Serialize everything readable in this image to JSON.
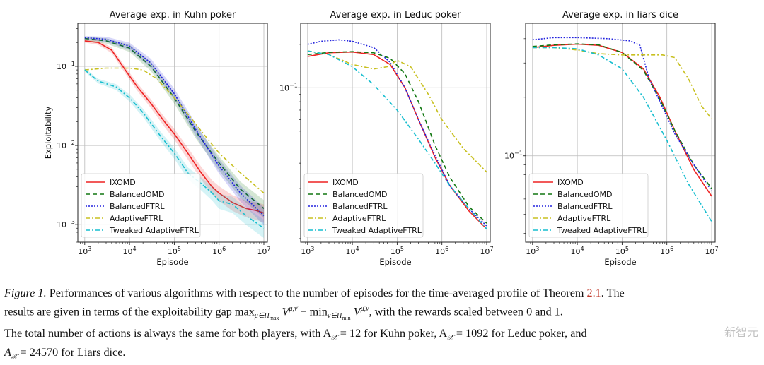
{
  "chart_data": [
    {
      "type": "line",
      "title": "Average exp. in Kuhn poker",
      "xlabel": "Episode",
      "ylabel": "Exploitability",
      "xscale": "log",
      "yscale": "log",
      "xlim": [
        700,
        12000000
      ],
      "ylim": [
        0.0006,
        0.35
      ],
      "xticks": [
        {
          "value": 1000,
          "base": "10",
          "exp": "3"
        },
        {
          "value": 10000,
          "base": "10",
          "exp": "4"
        },
        {
          "value": 100000,
          "base": "10",
          "exp": "5"
        },
        {
          "value": 1000000,
          "base": "10",
          "exp": "6"
        },
        {
          "value": 10000000,
          "base": "10",
          "exp": "7"
        }
      ],
      "yticks": [
        {
          "value": 0.001,
          "base": "10",
          "exp": "−3"
        },
        {
          "value": 0.01,
          "base": "10",
          "exp": "−2"
        },
        {
          "value": 0.1,
          "base": "10",
          "exp": "−1"
        }
      ],
      "grid": true,
      "legend": "lower-left",
      "series": [
        {
          "name": "IXOMD",
          "color": "#ee2222",
          "dash": "solid",
          "band": true,
          "points": [
            [
              1000,
              0.21
            ],
            [
              2000,
              0.2
            ],
            [
              4000,
              0.16
            ],
            [
              8000,
              0.09
            ],
            [
              15000,
              0.055
            ],
            [
              30000,
              0.034
            ],
            [
              60000,
              0.02
            ],
            [
              100000,
              0.014
            ],
            [
              200000,
              0.008
            ],
            [
              400000,
              0.0045
            ],
            [
              700000,
              0.003
            ],
            [
              1000000,
              0.0025
            ],
            [
              2000000,
              0.0019
            ],
            [
              4000000,
              0.0016
            ],
            [
              7000000,
              0.0015
            ],
            [
              10000000,
              0.0014
            ]
          ]
        },
        {
          "name": "BalancedOMD",
          "color": "#117711",
          "dash": "6,4",
          "band": true,
          "points": [
            [
              1000,
              0.225
            ],
            [
              3000,
              0.21
            ],
            [
              10000,
              0.17
            ],
            [
              30000,
              0.1
            ],
            [
              100000,
              0.04
            ],
            [
              300000,
              0.015
            ],
            [
              1000000,
              0.006
            ],
            [
              3000000,
              0.0028
            ],
            [
              10000000,
              0.0016
            ]
          ]
        },
        {
          "name": "BalancedFTRL",
          "color": "#2222dd",
          "dash": "2,2",
          "band": true,
          "points": [
            [
              1000,
              0.23
            ],
            [
              3000,
              0.22
            ],
            [
              10000,
              0.18
            ],
            [
              30000,
              0.11
            ],
            [
              100000,
              0.045
            ],
            [
              300000,
              0.016
            ],
            [
              1000000,
              0.0055
            ],
            [
              3000000,
              0.0025
            ],
            [
              10000000,
              0.0013
            ]
          ]
        },
        {
          "name": "AdaptiveFTRL",
          "color": "#c8c020",
          "dash": "6,3,2,3",
          "band": false,
          "points": [
            [
              1000,
              0.09
            ],
            [
              3000,
              0.095
            ],
            [
              10000,
              0.095
            ],
            [
              20000,
              0.09
            ],
            [
              40000,
              0.07
            ],
            [
              100000,
              0.04
            ],
            [
              200000,
              0.025
            ],
            [
              500000,
              0.013
            ],
            [
              1000000,
              0.008
            ],
            [
              3000000,
              0.0045
            ],
            [
              10000000,
              0.0025
            ]
          ]
        },
        {
          "name": "Tweaked AdaptiveFTRL",
          "color": "#17becf",
          "dash": "6,3,2,3",
          "band": true,
          "points": [
            [
              1000,
              0.09
            ],
            [
              2000,
              0.065
            ],
            [
              5000,
              0.055
            ],
            [
              10000,
              0.04
            ],
            [
              20000,
              0.026
            ],
            [
              50000,
              0.013
            ],
            [
              100000,
              0.008
            ],
            [
              200000,
              0.0045
            ],
            [
              400000,
              0.0033
            ],
            [
              700000,
              0.0025
            ],
            [
              1000000,
              0.002
            ],
            [
              2000000,
              0.0018
            ],
            [
              4000000,
              0.0013
            ],
            [
              10000000,
              0.0009
            ]
          ]
        }
      ]
    },
    {
      "type": "line",
      "title": "Average exp. in Leduc poker",
      "xlabel": "Episode",
      "ylabel": "",
      "xscale": "log",
      "yscale": "log",
      "xlim": [
        700,
        12000000
      ],
      "ylim": [
        0.0085,
        0.28
      ],
      "xticks": [
        {
          "value": 1000,
          "base": "10",
          "exp": "3"
        },
        {
          "value": 10000,
          "base": "10",
          "exp": "4"
        },
        {
          "value": 100000,
          "base": "10",
          "exp": "5"
        },
        {
          "value": 1000000,
          "base": "10",
          "exp": "6"
        },
        {
          "value": 10000000,
          "base": "10",
          "exp": "7"
        }
      ],
      "yticks": [
        {
          "value": 0.1,
          "base": "10",
          "exp": "−1"
        }
      ],
      "grid": true,
      "legend": "lower-left",
      "series": [
        {
          "name": "IXOMD",
          "color": "#ee2222",
          "dash": "solid",
          "band": false,
          "points": [
            [
              1000,
              0.165
            ],
            [
              3000,
              0.175
            ],
            [
              10000,
              0.177
            ],
            [
              30000,
              0.17
            ],
            [
              70000,
              0.145
            ],
            [
              150000,
              0.1
            ],
            [
              300000,
              0.06
            ],
            [
              700000,
              0.033
            ],
            [
              1500000,
              0.021
            ],
            [
              4000000,
              0.014
            ],
            [
              10000000,
              0.0105
            ]
          ]
        },
        {
          "name": "BalancedOMD",
          "color": "#117711",
          "dash": "6,4",
          "band": false,
          "points": [
            [
              1000,
              0.17
            ],
            [
              3000,
              0.176
            ],
            [
              10000,
              0.178
            ],
            [
              30000,
              0.175
            ],
            [
              70000,
              0.16
            ],
            [
              150000,
              0.125
            ],
            [
              300000,
              0.08
            ],
            [
              700000,
              0.04
            ],
            [
              1500000,
              0.024
            ],
            [
              4000000,
              0.015
            ],
            [
              10000000,
              0.0115
            ]
          ]
        },
        {
          "name": "BalancedFTRL",
          "color": "#2222dd",
          "dash": "2,2",
          "band": false,
          "points": [
            [
              1000,
              0.2
            ],
            [
              2000,
              0.21
            ],
            [
              5000,
              0.215
            ],
            [
              10000,
              0.21
            ],
            [
              30000,
              0.19
            ],
            [
              70000,
              0.15
            ],
            [
              150000,
              0.1
            ],
            [
              300000,
              0.06
            ],
            [
              700000,
              0.034
            ],
            [
              1500000,
              0.021
            ],
            [
              4000000,
              0.0145
            ],
            [
              10000000,
              0.011
            ]
          ]
        },
        {
          "name": "AdaptiveFTRL",
          "color": "#c8c020",
          "dash": "6,3,2,3",
          "band": false,
          "points": [
            [
              1000,
              0.18
            ],
            [
              3000,
              0.17
            ],
            [
              10000,
              0.145
            ],
            [
              30000,
              0.135
            ],
            [
              60000,
              0.14
            ],
            [
              100000,
              0.155
            ],
            [
              200000,
              0.14
            ],
            [
              500000,
              0.09
            ],
            [
              1000000,
              0.06
            ],
            [
              3000000,
              0.038
            ],
            [
              10000000,
              0.026
            ]
          ]
        },
        {
          "name": "Tweaked AdaptiveFTRL",
          "color": "#17becf",
          "dash": "6,3,2,3",
          "band": false,
          "points": [
            [
              1000,
              0.18
            ],
            [
              3000,
              0.17
            ],
            [
              10000,
              0.14
            ],
            [
              30000,
              0.105
            ],
            [
              100000,
              0.07
            ],
            [
              300000,
              0.044
            ],
            [
              700000,
              0.03
            ],
            [
              1500000,
              0.021
            ],
            [
              4000000,
              0.0145
            ],
            [
              10000000,
              0.0105
            ]
          ]
        }
      ]
    },
    {
      "type": "line",
      "title": "Average exp. in liars dice",
      "xlabel": "Episode",
      "ylabel": "",
      "xscale": "log",
      "yscale": "log",
      "xlim": [
        700,
        12000000
      ],
      "ylim": [
        0.036,
        0.48
      ],
      "xticks": [
        {
          "value": 1000,
          "base": "10",
          "exp": "3"
        },
        {
          "value": 10000,
          "base": "10",
          "exp": "4"
        },
        {
          "value": 100000,
          "base": "10",
          "exp": "5"
        },
        {
          "value": 1000000,
          "base": "10",
          "exp": "6"
        },
        {
          "value": 10000000,
          "base": "10",
          "exp": "7"
        }
      ],
      "yticks": [
        {
          "value": 0.1,
          "base": "10",
          "exp": "−1"
        }
      ],
      "grid": true,
      "legend": "lower-left",
      "series": [
        {
          "name": "IXOMD",
          "color": "#ee2222",
          "dash": "solid",
          "band": false,
          "points": [
            [
              1000,
              0.36
            ],
            [
              3000,
              0.37
            ],
            [
              10000,
              0.375
            ],
            [
              30000,
              0.37
            ],
            [
              100000,
              0.34
            ],
            [
              300000,
              0.28
            ],
            [
              700000,
              0.2
            ],
            [
              1500000,
              0.135
            ],
            [
              4000000,
              0.085
            ],
            [
              10000000,
              0.062
            ]
          ]
        },
        {
          "name": "BalancedOMD",
          "color": "#117711",
          "dash": "6,4",
          "band": false,
          "points": [
            [
              1000,
              0.365
            ],
            [
              3000,
              0.372
            ],
            [
              10000,
              0.376
            ],
            [
              30000,
              0.372
            ],
            [
              100000,
              0.34
            ],
            [
              300000,
              0.275
            ],
            [
              700000,
              0.195
            ],
            [
              1500000,
              0.135
            ],
            [
              4000000,
              0.09
            ],
            [
              10000000,
              0.068
            ]
          ]
        },
        {
          "name": "BalancedFTRL",
          "color": "#2222dd",
          "dash": "2,2",
          "band": false,
          "points": [
            [
              1000,
              0.395
            ],
            [
              3000,
              0.405
            ],
            [
              10000,
              0.405
            ],
            [
              50000,
              0.4
            ],
            [
              150000,
              0.39
            ],
            [
              250000,
              0.37
            ],
            [
              400000,
              0.25
            ],
            [
              700000,
              0.19
            ],
            [
              1500000,
              0.13
            ],
            [
              4000000,
              0.09
            ],
            [
              10000000,
              0.066
            ]
          ]
        },
        {
          "name": "AdaptiveFTRL",
          "color": "#c8c020",
          "dash": "6,3,2,3",
          "band": false,
          "points": [
            [
              1000,
              0.36
            ],
            [
              3000,
              0.36
            ],
            [
              10000,
              0.35
            ],
            [
              30000,
              0.335
            ],
            [
              100000,
              0.33
            ],
            [
              300000,
              0.33
            ],
            [
              800000,
              0.33
            ],
            [
              1500000,
              0.32
            ],
            [
              3000000,
              0.25
            ],
            [
              6000000,
              0.18
            ],
            [
              10000000,
              0.155
            ]
          ]
        },
        {
          "name": "Tweaked AdaptiveFTRL",
          "color": "#17becf",
          "dash": "6,3,2,3",
          "band": false,
          "points": [
            [
              1000,
              0.36
            ],
            [
              3000,
              0.36
            ],
            [
              10000,
              0.355
            ],
            [
              30000,
              0.33
            ],
            [
              100000,
              0.28
            ],
            [
              300000,
              0.2
            ],
            [
              1000000,
              0.12
            ],
            [
              3000000,
              0.072
            ],
            [
              10000000,
              0.046
            ]
          ]
        }
      ]
    }
  ],
  "caption": {
    "label": "Figure 1.",
    "line1": " Performances of various algorithms with respect to the number of episodes for the time-averaged profile of Theorem ",
    "ref": "2.1",
    "line1_end": ". The",
    "line2": "results are given in terms of the exploitability gap max",
    "line2_sub": "μ∈Π",
    "line2_subsub": "max",
    "line2_mid": " V",
    "line2_sup": "μ,ν̄",
    "line2_min": " − min",
    "line2_sub2": "ν∈Π",
    "line2_subsub2": "min",
    "line2_v2": " V",
    "line2_sup2": "μ̄,ν",
    "line2_end": ", with the rewards scaled between 0 and 1.",
    "line3": "The total number of actions is always the same for both players, with A",
    "line3_sub": "𝒳",
    "line3_a": " = 12 for Kuhn poker, A",
    "line3_b": " = 1092 for Leduc poker, and",
    "line4_a": "A",
    "line4_b": " = 24570 for Liars dice."
  },
  "watermark": "新智元"
}
